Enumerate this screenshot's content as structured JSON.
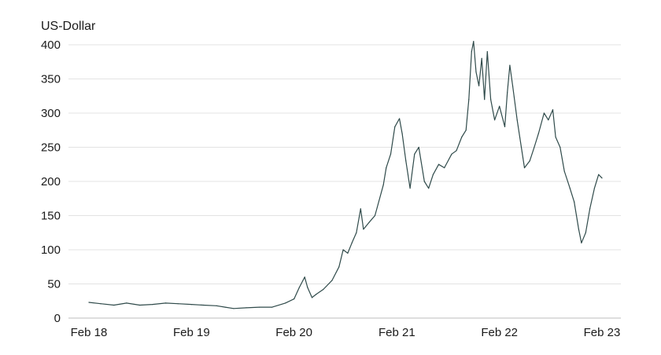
{
  "chart_data": {
    "type": "line",
    "ylabel": "US-Dollar",
    "ylim": [
      0,
      400
    ],
    "yticks": [
      0,
      50,
      100,
      150,
      200,
      250,
      300,
      350,
      400
    ],
    "xlim": [
      "2018-02-01",
      "2023-02-01"
    ],
    "xticks": [
      {
        "date": "2018-02-01",
        "label": "Feb 18"
      },
      {
        "date": "2019-02-01",
        "label": "Feb 19"
      },
      {
        "date": "2020-02-01",
        "label": "Feb 20"
      },
      {
        "date": "2021-02-01",
        "label": "Feb 21"
      },
      {
        "date": "2022-02-01",
        "label": "Feb 22"
      },
      {
        "date": "2023-02-01",
        "label": "Feb 23"
      }
    ],
    "grid": true,
    "color": "#2f4a4a",
    "series": [
      {
        "name": "",
        "points": [
          [
            "2018-02-01",
            23
          ],
          [
            "2018-03-15",
            21
          ],
          [
            "2018-05-01",
            19
          ],
          [
            "2018-06-15",
            22
          ],
          [
            "2018-08-01",
            19
          ],
          [
            "2018-09-15",
            20
          ],
          [
            "2018-11-01",
            22
          ],
          [
            "2018-12-15",
            21
          ],
          [
            "2019-02-01",
            20
          ],
          [
            "2019-03-15",
            19
          ],
          [
            "2019-05-01",
            18
          ],
          [
            "2019-06-01",
            16
          ],
          [
            "2019-07-01",
            14
          ],
          [
            "2019-08-15",
            15
          ],
          [
            "2019-10-01",
            16
          ],
          [
            "2019-11-15",
            16
          ],
          [
            "2020-01-01",
            22
          ],
          [
            "2020-02-01",
            28
          ],
          [
            "2020-02-20",
            45
          ],
          [
            "2020-03-10",
            60
          ],
          [
            "2020-03-20",
            45
          ],
          [
            "2020-04-05",
            30
          ],
          [
            "2020-04-20",
            35
          ],
          [
            "2020-05-15",
            42
          ],
          [
            "2020-06-15",
            55
          ],
          [
            "2020-07-10",
            75
          ],
          [
            "2020-07-25",
            100
          ],
          [
            "2020-08-10",
            95
          ],
          [
            "2020-08-25",
            110
          ],
          [
            "2020-09-10",
            125
          ],
          [
            "2020-09-25",
            160
          ],
          [
            "2020-10-05",
            130
          ],
          [
            "2020-10-25",
            140
          ],
          [
            "2020-11-15",
            150
          ],
          [
            "2020-12-15",
            195
          ],
          [
            "2020-12-25",
            220
          ],
          [
            "2021-01-10",
            240
          ],
          [
            "2021-01-25",
            280
          ],
          [
            "2021-02-10",
            292
          ],
          [
            "2021-02-20",
            270
          ],
          [
            "2021-03-05",
            230
          ],
          [
            "2021-03-20",
            190
          ],
          [
            "2021-04-05",
            240
          ],
          [
            "2021-04-20",
            250
          ],
          [
            "2021-05-10",
            200
          ],
          [
            "2021-05-25",
            190
          ],
          [
            "2021-06-10",
            210
          ],
          [
            "2021-06-30",
            225
          ],
          [
            "2021-07-20",
            220
          ],
          [
            "2021-08-15",
            240
          ],
          [
            "2021-09-01",
            245
          ],
          [
            "2021-09-20",
            265
          ],
          [
            "2021-10-05",
            275
          ],
          [
            "2021-10-15",
            320
          ],
          [
            "2021-10-25",
            390
          ],
          [
            "2021-11-01",
            405
          ],
          [
            "2021-11-10",
            360
          ],
          [
            "2021-11-20",
            340
          ],
          [
            "2021-11-30",
            380
          ],
          [
            "2021-12-10",
            320
          ],
          [
            "2021-12-20",
            390
          ],
          [
            "2022-01-01",
            320
          ],
          [
            "2022-01-15",
            290
          ],
          [
            "2022-02-01",
            310
          ],
          [
            "2022-02-20",
            280
          ],
          [
            "2022-03-01",
            330
          ],
          [
            "2022-03-10",
            370
          ],
          [
            "2022-03-20",
            340
          ],
          [
            "2022-04-05",
            290
          ],
          [
            "2022-04-20",
            250
          ],
          [
            "2022-05-01",
            220
          ],
          [
            "2022-05-20",
            230
          ],
          [
            "2022-06-05",
            250
          ],
          [
            "2022-06-20",
            270
          ],
          [
            "2022-07-10",
            300
          ],
          [
            "2022-07-25",
            290
          ],
          [
            "2022-08-10",
            305
          ],
          [
            "2022-08-20",
            265
          ],
          [
            "2022-09-05",
            250
          ],
          [
            "2022-09-20",
            215
          ],
          [
            "2022-10-10",
            190
          ],
          [
            "2022-10-25",
            170
          ],
          [
            "2022-11-10",
            130
          ],
          [
            "2022-11-20",
            110
          ],
          [
            "2022-12-05",
            125
          ],
          [
            "2022-12-20",
            160
          ],
          [
            "2023-01-05",
            190
          ],
          [
            "2023-01-20",
            210
          ],
          [
            "2023-02-01",
            205
          ]
        ]
      }
    ]
  }
}
